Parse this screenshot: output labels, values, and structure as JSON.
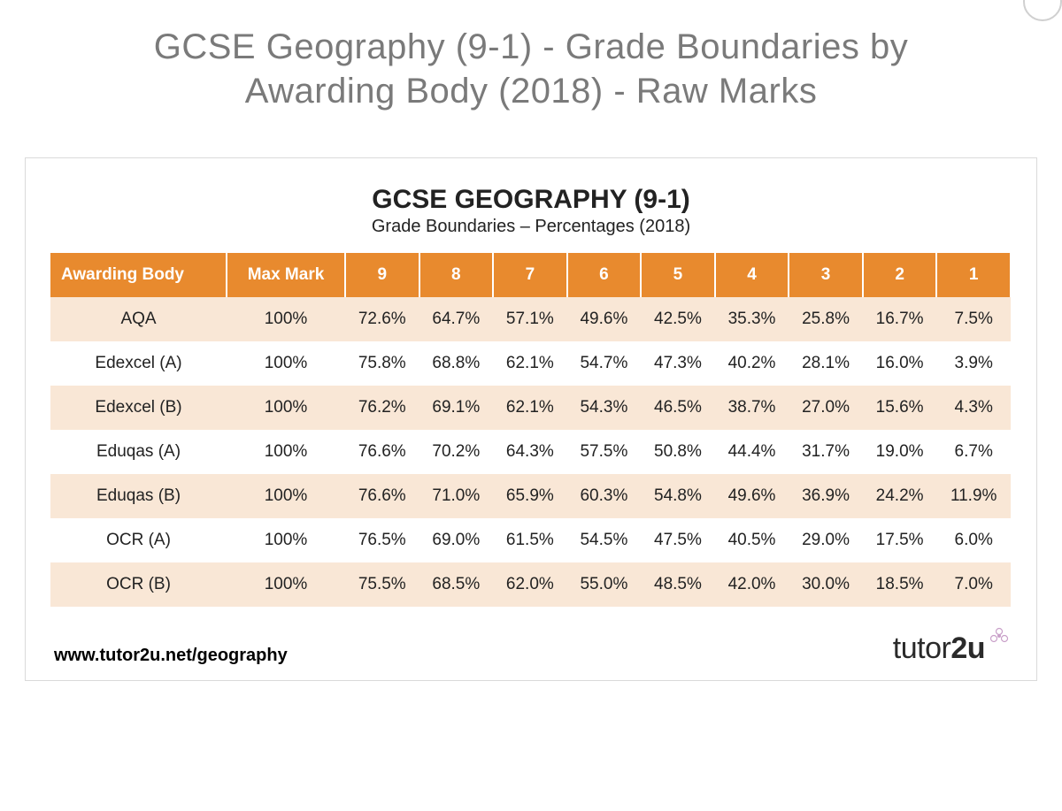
{
  "colors": {
    "header_bg": "#e88a2e",
    "row_odd": "#f9e7d6",
    "row_even": "#ffffff",
    "page_bg": "#ffffff"
  },
  "outer_title_line1": "GCSE Geography (9-1) - Grade Boundaries by",
  "outer_title_line2": "Awarding Body (2018) - Raw Marks",
  "panel": {
    "title": "GCSE GEOGRAPHY (9-1)",
    "subtitle": "Grade Boundaries – Percentages (2018)"
  },
  "table": {
    "columns": [
      "Awarding Body",
      "Max Mark",
      "9",
      "8",
      "7",
      "6",
      "5",
      "4",
      "3",
      "2",
      "1"
    ],
    "rows": [
      [
        "AQA",
        "100%",
        "72.6%",
        "64.7%",
        "57.1%",
        "49.6%",
        "42.5%",
        "35.3%",
        "25.8%",
        "16.7%",
        "7.5%"
      ],
      [
        "Edexcel (A)",
        "100%",
        "75.8%",
        "68.8%",
        "62.1%",
        "54.7%",
        "47.3%",
        "40.2%",
        "28.1%",
        "16.0%",
        "3.9%"
      ],
      [
        "Edexcel (B)",
        "100%",
        "76.2%",
        "69.1%",
        "62.1%",
        "54.3%",
        "46.5%",
        "38.7%",
        "27.0%",
        "15.6%",
        "4.3%"
      ],
      [
        "Eduqas (A)",
        "100%",
        "76.6%",
        "70.2%",
        "64.3%",
        "57.5%",
        "50.8%",
        "44.4%",
        "31.7%",
        "19.0%",
        "6.7%"
      ],
      [
        "Eduqas (B)",
        "100%",
        "76.6%",
        "71.0%",
        "65.9%",
        "60.3%",
        "54.8%",
        "49.6%",
        "36.9%",
        "24.2%",
        "11.9%"
      ],
      [
        "OCR (A)",
        "100%",
        "76.5%",
        "69.0%",
        "61.5%",
        "54.5%",
        "47.5%",
        "40.5%",
        "29.0%",
        "17.5%",
        "6.0%"
      ],
      [
        "OCR (B)",
        "100%",
        "75.5%",
        "68.5%",
        "62.0%",
        "55.0%",
        "48.5%",
        "42.0%",
        "30.0%",
        "18.5%",
        "7.0%"
      ]
    ]
  },
  "footer": {
    "url": "www.tutor2u.net/geography",
    "brand_plain": "tutor",
    "brand_bold": "2u"
  }
}
